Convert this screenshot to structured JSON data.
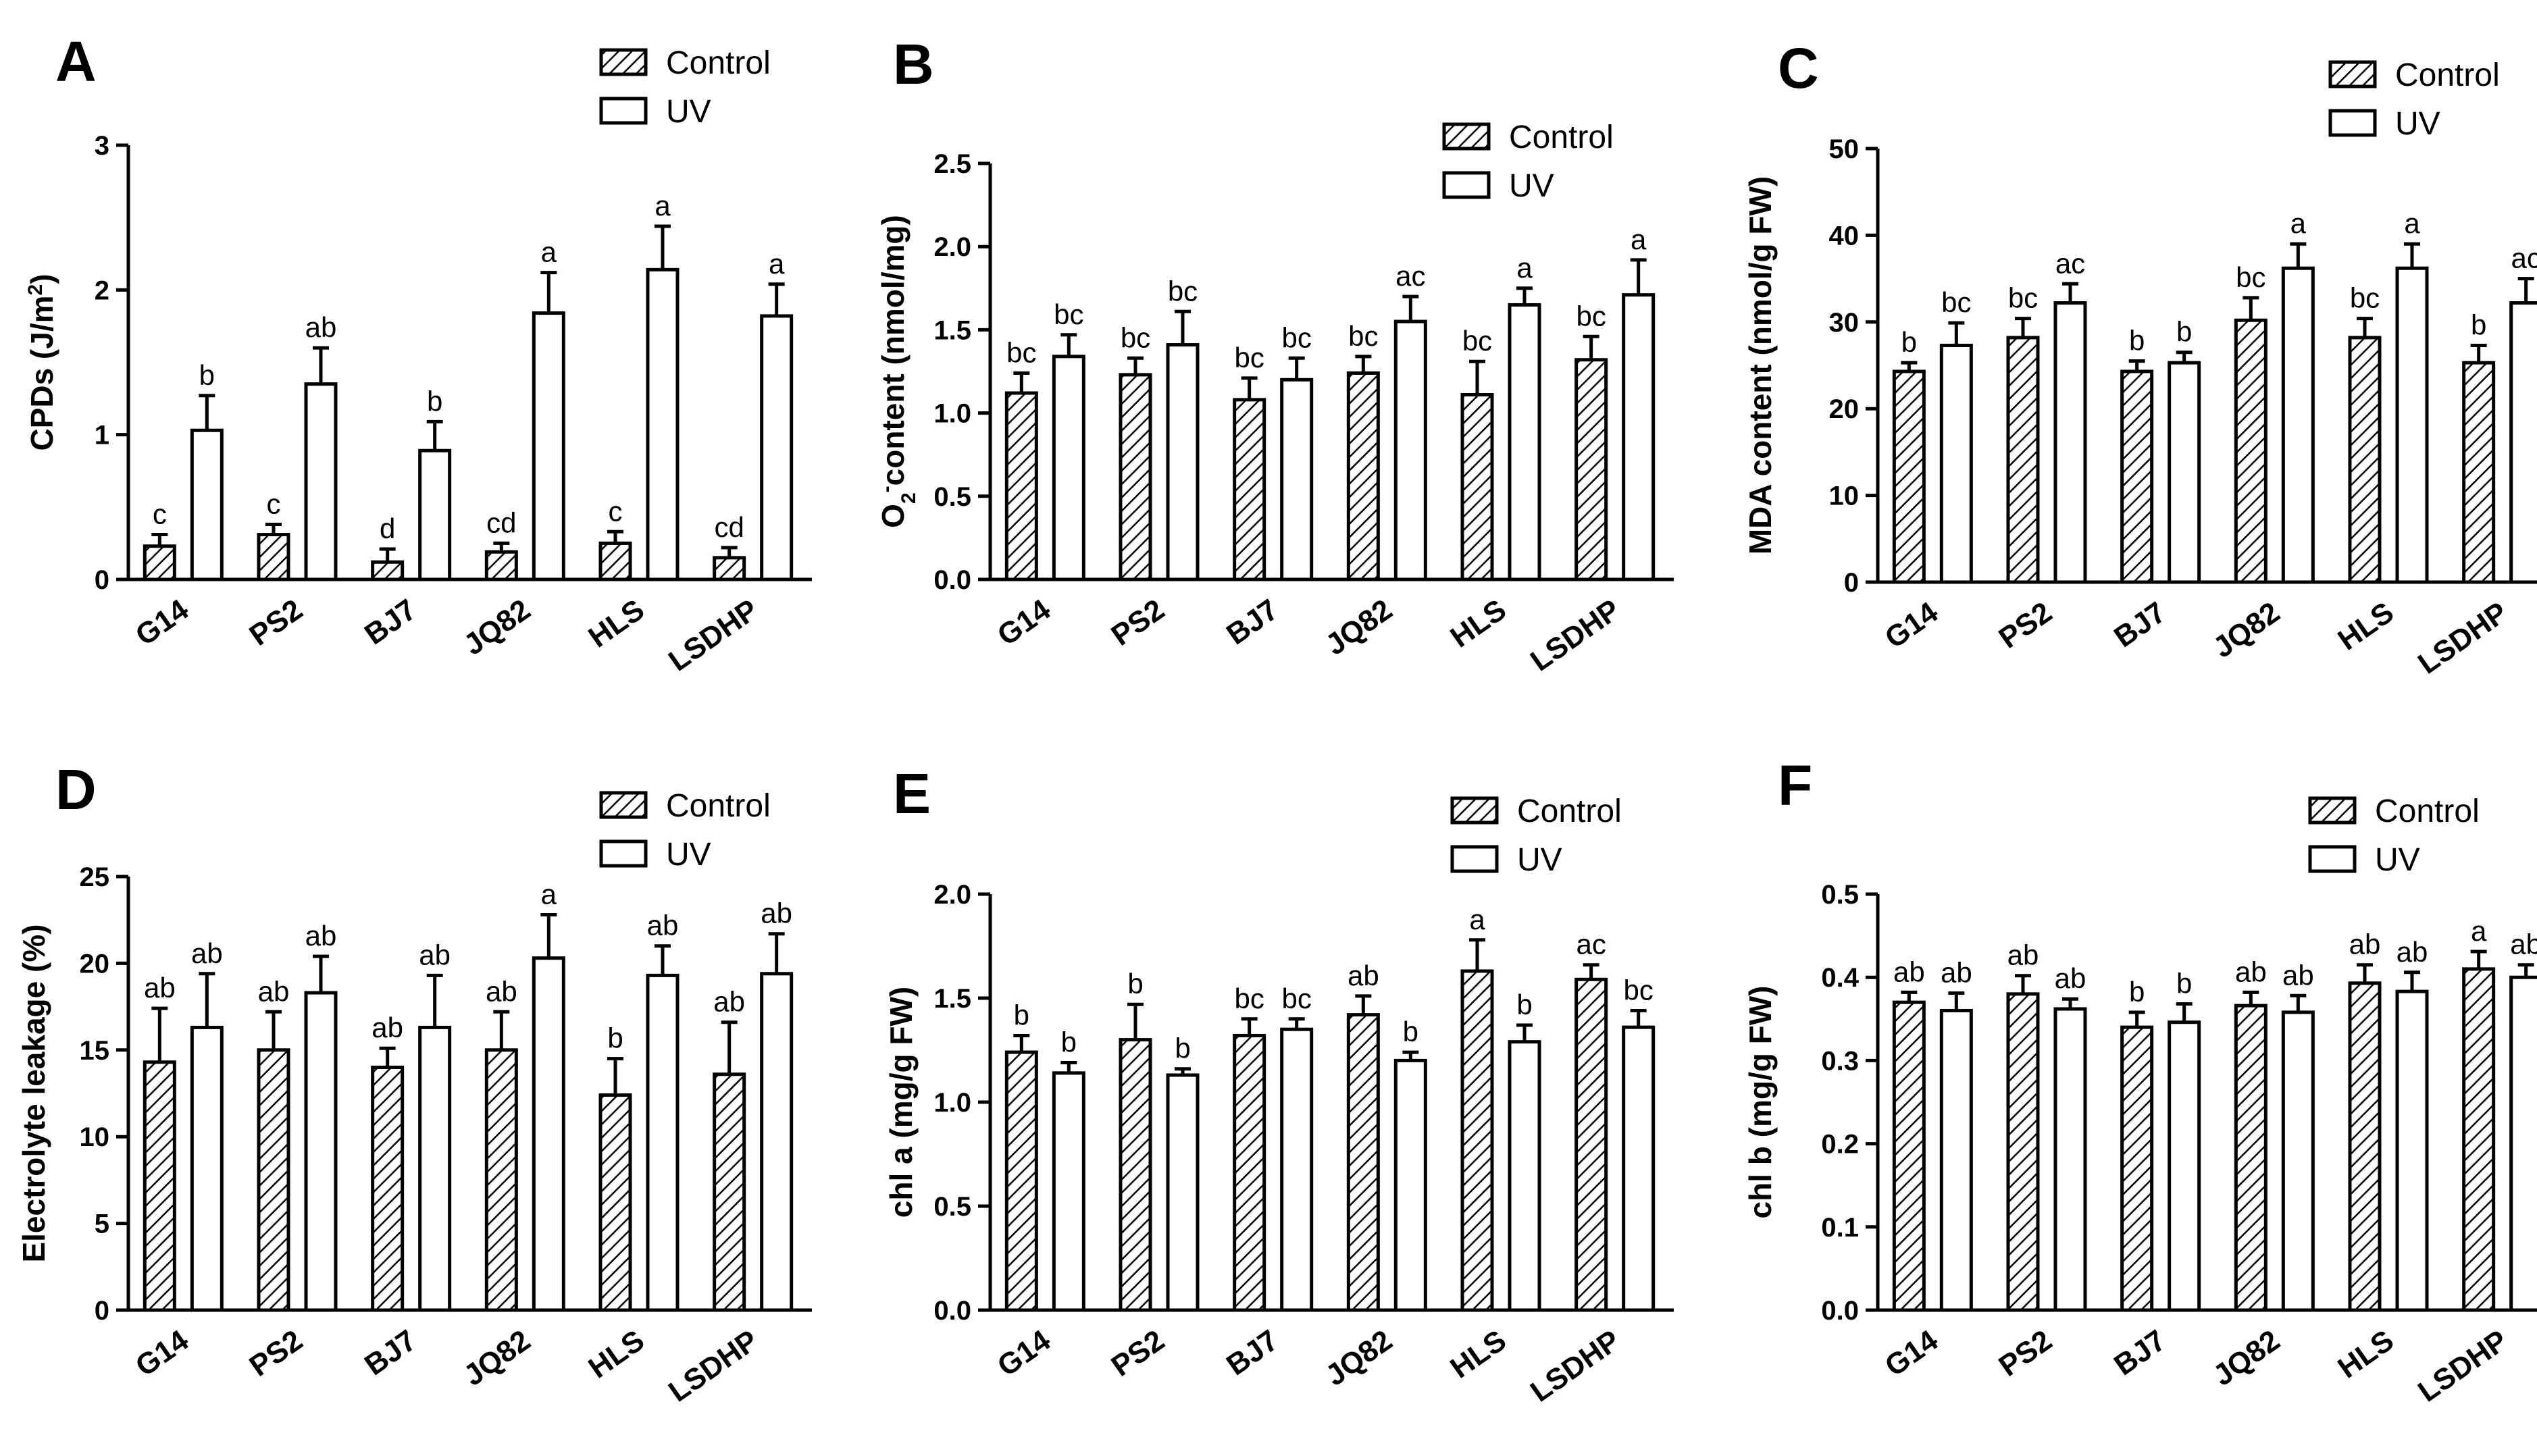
{
  "chart_data": [
    {
      "panel": "A",
      "type": "bar",
      "ylabel": "CPDs (J/m²)",
      "ylim": [
        0,
        3
      ],
      "yticks": [
        0,
        1,
        2,
        3
      ],
      "tick_decimals": 0,
      "categories": [
        "G14",
        "PS2",
        "BJ7",
        "JQ82",
        "HLS",
        "LSDHP"
      ],
      "legend": [
        "Control",
        "UV"
      ],
      "series": [
        {
          "name": "Control",
          "pattern": "hatched",
          "values": [
            0.23,
            0.31,
            0.12,
            0.19,
            0.25,
            0.15
          ],
          "errors": [
            0.08,
            0.07,
            0.09,
            0.06,
            0.08,
            0.07
          ],
          "letters": [
            "c",
            "c",
            "d",
            "cd",
            "c",
            "cd"
          ]
        },
        {
          "name": "UV",
          "pattern": "open",
          "values": [
            1.03,
            1.35,
            0.89,
            1.84,
            2.14,
            1.82
          ],
          "errors": [
            0.24,
            0.25,
            0.2,
            0.28,
            0.3,
            0.22
          ],
          "letters": [
            "b",
            "ab",
            "b",
            "a",
            "a",
            "a"
          ]
        }
      ]
    },
    {
      "panel": "B",
      "type": "bar",
      "ylabel": "O2⁻content (nmol/mg)",
      "ylim": [
        0,
        2.5
      ],
      "yticks": [
        0,
        0.5,
        1,
        1.5,
        2,
        2.5
      ],
      "tick_decimals": 1,
      "categories": [
        "G14",
        "PS2",
        "BJ7",
        "JQ82",
        "HLS",
        "LSDHP"
      ],
      "legend": [
        "Control",
        "UV"
      ],
      "series": [
        {
          "name": "Control",
          "pattern": "hatched",
          "values": [
            1.12,
            1.23,
            1.08,
            1.24,
            1.11,
            1.32
          ],
          "errors": [
            0.12,
            0.1,
            0.13,
            0.1,
            0.2,
            0.14
          ],
          "letters": [
            "bc",
            "bc",
            "bc",
            "bc",
            "bc",
            "bc"
          ]
        },
        {
          "name": "UV",
          "pattern": "open",
          "values": [
            1.34,
            1.41,
            1.2,
            1.55,
            1.65,
            1.71
          ],
          "errors": [
            0.13,
            0.2,
            0.13,
            0.15,
            0.1,
            0.21
          ],
          "letters": [
            "bc",
            "bc",
            "bc",
            "ac",
            "a",
            "a"
          ]
        }
      ]
    },
    {
      "panel": "C",
      "type": "bar",
      "ylabel": "MDA content (nmol/g FW)",
      "ylim": [
        0,
        50
      ],
      "yticks": [
        0,
        10,
        20,
        30,
        40,
        50
      ],
      "tick_decimals": 0,
      "categories": [
        "G14",
        "PS2",
        "BJ7",
        "JQ82",
        "HLS",
        "LSDHP"
      ],
      "legend": [
        "Control",
        "UV"
      ],
      "series": [
        {
          "name": "Control",
          "pattern": "hatched",
          "values": [
            24.3,
            28.2,
            24.3,
            30.2,
            28.2,
            25.3
          ],
          "errors": [
            1.0,
            2.2,
            1.2,
            2.6,
            2.2,
            2.0
          ],
          "letters": [
            "b",
            "bc",
            "b",
            "bc",
            "bc",
            "b"
          ]
        },
        {
          "name": "UV",
          "pattern": "open",
          "values": [
            27.3,
            32.2,
            25.3,
            36.2,
            36.2,
            32.2
          ],
          "errors": [
            2.6,
            2.2,
            1.2,
            2.8,
            2.8,
            2.8
          ],
          "letters": [
            "bc",
            "ac",
            "b",
            "a",
            "a",
            "ac"
          ]
        }
      ]
    },
    {
      "panel": "D",
      "type": "bar",
      "ylabel": "Electrolyte leakage (%)",
      "ylim": [
        0,
        25
      ],
      "yticks": [
        0,
        5,
        10,
        15,
        20,
        25
      ],
      "tick_decimals": 0,
      "categories": [
        "G14",
        "PS2",
        "BJ7",
        "JQ82",
        "HLS",
        "LSDHP"
      ],
      "legend": [
        "Control",
        "UV"
      ],
      "series": [
        {
          "name": "Control",
          "pattern": "hatched",
          "values": [
            14.3,
            15.0,
            14.0,
            15.0,
            12.4,
            13.6
          ],
          "errors": [
            3.1,
            2.2,
            1.1,
            2.2,
            2.1,
            3.0
          ],
          "letters": [
            "ab",
            "ab",
            "ab",
            "ab",
            "b",
            "ab"
          ]
        },
        {
          "name": "UV",
          "pattern": "open",
          "values": [
            16.3,
            18.3,
            16.3,
            20.3,
            19.3,
            19.4
          ],
          "errors": [
            3.1,
            2.1,
            3.0,
            2.5,
            1.7,
            2.3
          ],
          "letters": [
            "ab",
            "ab",
            "ab",
            "a",
            "ab",
            "ab"
          ]
        }
      ]
    },
    {
      "panel": "E",
      "type": "bar",
      "ylabel": "chl a (mg/g FW)",
      "ylim": [
        0,
        2
      ],
      "yticks": [
        0,
        0.5,
        1,
        1.5,
        2
      ],
      "tick_decimals": 1,
      "categories": [
        "G14",
        "PS2",
        "BJ7",
        "JQ82",
        "HLS",
        "LSDHP"
      ],
      "legend": [
        "Control",
        "UV"
      ],
      "series": [
        {
          "name": "Control",
          "pattern": "hatched",
          "values": [
            1.24,
            1.3,
            1.32,
            1.42,
            1.63,
            1.59
          ],
          "errors": [
            0.08,
            0.17,
            0.08,
            0.09,
            0.15,
            0.07
          ],
          "letters": [
            "b",
            "b",
            "bc",
            "ab",
            "a",
            "ac"
          ]
        },
        {
          "name": "UV",
          "pattern": "open",
          "values": [
            1.14,
            1.13,
            1.35,
            1.2,
            1.29,
            1.36
          ],
          "errors": [
            0.05,
            0.03,
            0.05,
            0.04,
            0.08,
            0.08
          ],
          "letters": [
            "b",
            "b",
            "bc",
            "b",
            "b",
            "bc"
          ]
        }
      ]
    },
    {
      "panel": "F",
      "type": "bar",
      "ylabel": "chl b (mg/g FW)",
      "ylim": [
        0,
        0.5
      ],
      "yticks": [
        0,
        0.1,
        0.2,
        0.3,
        0.4,
        0.5
      ],
      "tick_decimals": 1,
      "categories": [
        "G14",
        "PS2",
        "BJ7",
        "JQ82",
        "HLS",
        "LSDHP"
      ],
      "legend": [
        "Control",
        "UV"
      ],
      "series": [
        {
          "name": "Control",
          "pattern": "hatched",
          "values": [
            0.37,
            0.38,
            0.34,
            0.366,
            0.393,
            0.41
          ],
          "errors": [
            0.012,
            0.022,
            0.018,
            0.016,
            0.022,
            0.021
          ],
          "letters": [
            "ab",
            "ab",
            "b",
            "ab",
            "ab",
            "a"
          ]
        },
        {
          "name": "UV",
          "pattern": "open",
          "values": [
            0.36,
            0.362,
            0.346,
            0.358,
            0.383,
            0.4
          ],
          "errors": [
            0.021,
            0.012,
            0.022,
            0.02,
            0.023,
            0.015
          ],
          "letters": [
            "ab",
            "ab",
            "b",
            "ab",
            "ab",
            "ab"
          ]
        }
      ]
    }
  ]
}
